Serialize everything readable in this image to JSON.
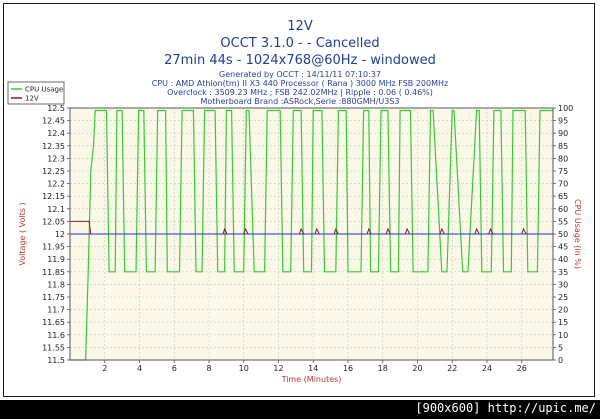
{
  "header": {
    "title": "12V",
    "subtitle1": "OCCT 3.1.0 -  - Cancelled",
    "subtitle2": "27min 44s - 1024x768@60Hz - windowed"
  },
  "info": {
    "line1": "Generated by OCCT : 14/11/11 07:10:37",
    "line2": "CPU : AMD Athlon(tm) II X3 440 Processor ( Rana ) 3000 MHz FSB 200MHz",
    "line3": "Overclock : 3509.23 MHz ; FSB 242.02MHz | Ripple : 0.06 ( 0.46%)",
    "line4": "Motherboard Brand :ASRock,Serie :880GMH/U3S3"
  },
  "footer": {
    "text": "[900x600] http://upic.me/"
  },
  "colors": {
    "title": "#1c3fa0",
    "plot_bg": "#fbf8e8",
    "grid": "#c8c8c8",
    "cpu_usage": "#33cc33",
    "twelve_v": "#8b1a1a",
    "axis_label": "#c0392b",
    "footer_bg": "#000000"
  },
  "chart_data": {
    "type": "line",
    "xlabel": "Time (Minutes)",
    "ylabel": "Voltage ( Volts )",
    "ylabel_right": "CPU Usage (in %)",
    "xlim": [
      0,
      27.8
    ],
    "ylim": [
      11.5,
      12.5
    ],
    "ylim_right": [
      0,
      100
    ],
    "x_ticks": [
      2,
      4,
      6,
      8,
      10,
      12,
      14,
      16,
      18,
      20,
      22,
      24,
      26
    ],
    "y_ticks": [
      11.5,
      11.55,
      11.6,
      11.65,
      11.7,
      11.75,
      11.8,
      11.85,
      11.9,
      11.95,
      12,
      12.05,
      12.1,
      12.15,
      12.2,
      12.25,
      12.3,
      12.35,
      12.4,
      12.45,
      12.5
    ],
    "y_ticks_right": [
      0,
      5,
      10,
      15,
      20,
      25,
      30,
      35,
      40,
      45,
      50,
      55,
      60,
      65,
      70,
      75,
      80,
      85,
      90,
      95,
      100
    ],
    "grid": true,
    "legend_position": "top-left",
    "series": [
      {
        "name": "CPU Usage",
        "axis": "right",
        "x": [
          0.0,
          0.9,
          1.05,
          1.2,
          1.35,
          1.45,
          1.5,
          1.55,
          2.1,
          2.25,
          2.35,
          2.6,
          2.7,
          3.0,
          3.15,
          3.3,
          3.8,
          3.95,
          4.05,
          4.25,
          4.4,
          4.9,
          5.05,
          5.2,
          5.5,
          5.6,
          6.2,
          6.3,
          6.45,
          7.1,
          7.25,
          7.35,
          7.6,
          7.75,
          8.35,
          8.5,
          8.6,
          8.9,
          9.0,
          9.3,
          9.45,
          9.6,
          10.0,
          10.15,
          10.3,
          10.6,
          10.7,
          11.2,
          11.35,
          11.5,
          12.1,
          12.25,
          12.35,
          12.7,
          12.85,
          13.3,
          13.45,
          13.6,
          13.9,
          14.0,
          14.5,
          14.65,
          14.8,
          15.3,
          15.45,
          15.55,
          15.9,
          16.0,
          16.6,
          16.75,
          16.9,
          17.2,
          17.3,
          17.6,
          17.75,
          17.9,
          18.3,
          18.45,
          18.55,
          18.9,
          19.0,
          19.6,
          19.75,
          19.9,
          20.6,
          20.75,
          20.9,
          21.4,
          21.55,
          21.7,
          22.0,
          22.1,
          22.6,
          22.75,
          22.9,
          23.4,
          23.55,
          23.7,
          24.1,
          24.25,
          24.4,
          24.8,
          24.95,
          25.1,
          25.4,
          25.5,
          26.2,
          26.35,
          26.5,
          26.9,
          27.05,
          27.8
        ],
        "values": [
          0,
          0,
          35,
          75,
          85,
          99,
          99,
          99,
          99,
          35,
          35,
          35,
          99,
          99,
          35,
          35,
          35,
          99,
          99,
          99,
          35,
          35,
          99,
          99,
          99,
          35,
          35,
          35,
          99,
          99,
          35,
          35,
          35,
          99,
          99,
          35,
          35,
          35,
          99,
          99,
          35,
          35,
          35,
          99,
          99,
          35,
          35,
          35,
          99,
          99,
          99,
          35,
          35,
          35,
          99,
          99,
          35,
          35,
          35,
          99,
          99,
          35,
          35,
          35,
          99,
          99,
          99,
          35,
          35,
          35,
          99,
          99,
          35,
          35,
          35,
          99,
          99,
          35,
          35,
          35,
          99,
          99,
          35,
          35,
          35,
          99,
          99,
          35,
          35,
          35,
          99,
          99,
          35,
          35,
          35,
          99,
          99,
          35,
          35,
          35,
          99,
          99,
          35,
          35,
          35,
          99,
          99,
          35,
          35,
          35,
          99,
          99
        ]
      },
      {
        "name": "12V",
        "axis": "left",
        "x": [
          0.0,
          1.1,
          1.2,
          8.8,
          8.9,
          9.05,
          9.15,
          10.0,
          10.1,
          10.25,
          10.35,
          13.2,
          13.3,
          13.45,
          13.55,
          14.1,
          14.2,
          14.35,
          14.45,
          15.2,
          15.3,
          15.45,
          15.55,
          17.1,
          17.2,
          17.35,
          17.45,
          18.2,
          18.3,
          18.45,
          18.55,
          19.3,
          19.4,
          19.55,
          19.65,
          21.3,
          21.4,
          21.55,
          21.65,
          23.3,
          23.4,
          23.55,
          23.65,
          24.1,
          24.2,
          24.35,
          24.45,
          26.0,
          26.1,
          26.25,
          26.35,
          27.8
        ],
        "values": [
          12.05,
          12.05,
          12.0,
          12.0,
          12.02,
          12.0,
          12.0,
          12.0,
          12.02,
          12.0,
          12.0,
          12.0,
          12.02,
          12.0,
          12.0,
          12.0,
          12.02,
          12.0,
          12.0,
          12.0,
          12.02,
          12.0,
          12.0,
          12.0,
          12.02,
          12.0,
          12.0,
          12.0,
          12.02,
          12.0,
          12.0,
          12.0,
          12.02,
          12.0,
          12.0,
          12.0,
          12.02,
          12.0,
          12.0,
          12.0,
          12.02,
          12.0,
          12.0,
          12.0,
          12.02,
          12.0,
          12.0,
          12.0,
          12.02,
          12.0,
          12.0,
          12.0
        ]
      }
    ]
  }
}
